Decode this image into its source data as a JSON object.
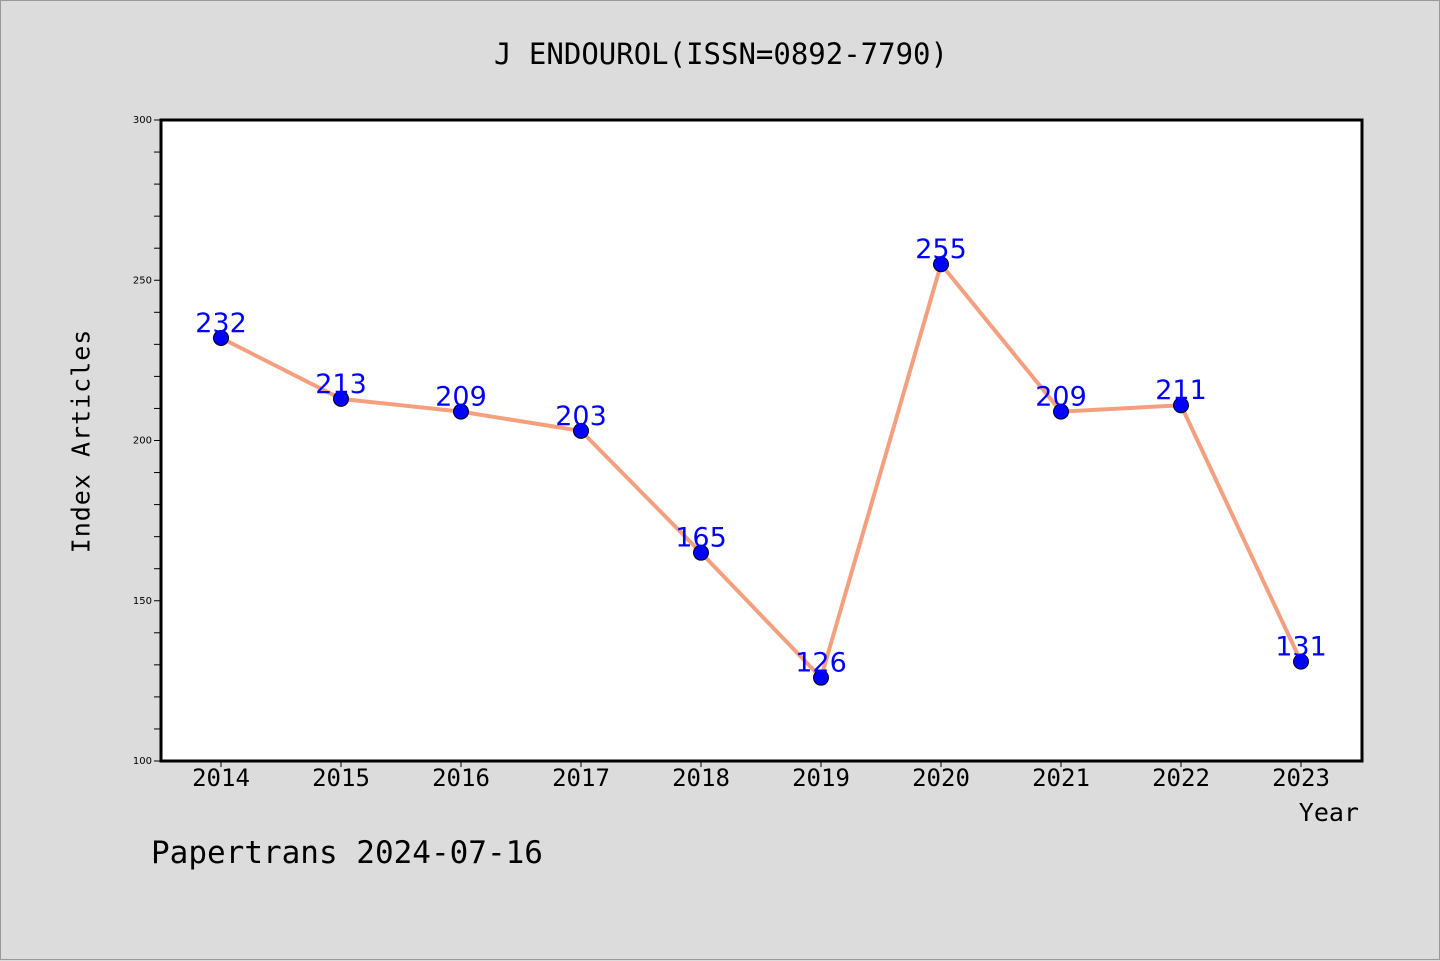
{
  "chart_data": {
    "type": "line",
    "title": "J ENDOUROL(ISSN=0892-7790)",
    "xlabel": "Year",
    "ylabel": "Index Articles",
    "categories": [
      "2014",
      "2015",
      "2016",
      "2017",
      "2018",
      "2019",
      "2020",
      "2021",
      "2022",
      "2023"
    ],
    "series": [
      {
        "values": [
          232,
          213,
          209,
          203,
          165,
          126,
          255,
          209,
          211,
          131
        ]
      }
    ],
    "ylim": [
      100,
      300
    ],
    "yticks": [
      "100",
      "150",
      "200",
      "250",
      "300"
    ],
    "grid": false,
    "line_color": "#f4a07e",
    "marker_color": "#0000ff",
    "label_color": "#0000ff"
  },
  "footer": "Papertrans 2024-07-16"
}
